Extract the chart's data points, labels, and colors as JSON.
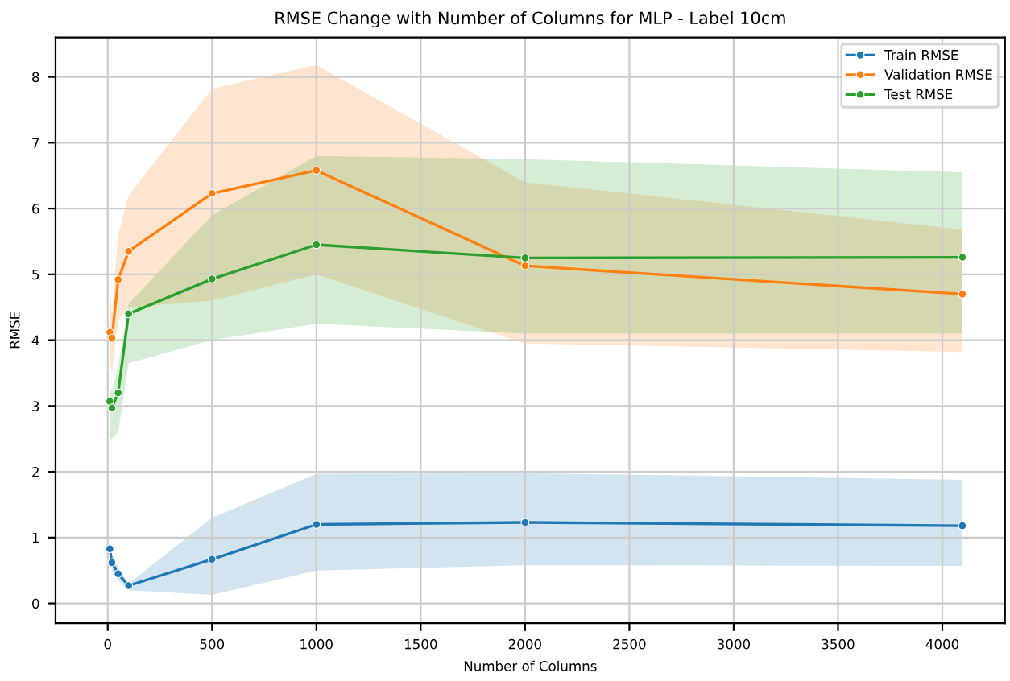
{
  "chart_data": {
    "type": "line",
    "title": "RMSE Change with Number of Columns for MLP - Label 10cm",
    "xlabel": "Number of Columns",
    "ylabel": "RMSE",
    "x": [
      10,
      20,
      50,
      100,
      500,
      1000,
      2000,
      4096
    ],
    "series": [
      {
        "name": "Train RMSE",
        "color": "#1f77b4",
        "values": [
          0.83,
          0.62,
          0.45,
          0.27,
          0.67,
          1.2,
          1.23,
          1.18
        ],
        "lower": [
          0.7,
          0.5,
          0.35,
          0.2,
          0.13,
          0.5,
          0.58,
          0.57
        ],
        "upper": [
          0.95,
          0.75,
          0.55,
          0.3,
          1.3,
          1.97,
          1.98,
          1.88
        ]
      },
      {
        "name": "Validation RMSE",
        "color": "#ff7f0e",
        "values": [
          4.12,
          4.03,
          4.92,
          5.35,
          6.23,
          6.58,
          5.13,
          4.7
        ],
        "lower": [
          3.7,
          3.5,
          4.3,
          4.5,
          4.6,
          5.0,
          3.95,
          3.82
        ],
        "upper": [
          4.8,
          4.4,
          5.6,
          6.2,
          7.82,
          8.18,
          6.4,
          5.68
        ]
      },
      {
        "name": "Test RMSE",
        "color": "#2ca02c",
        "values": [
          3.07,
          2.97,
          3.2,
          4.4,
          4.93,
          5.45,
          5.25,
          5.26
        ],
        "lower": [
          2.5,
          2.5,
          2.6,
          3.65,
          4.0,
          4.25,
          4.1,
          4.1
        ],
        "upper": [
          3.3,
          3.2,
          3.6,
          4.55,
          5.9,
          6.8,
          6.75,
          6.55
        ]
      }
    ],
    "xlim": [
      -250,
      4300
    ],
    "ylim": [
      -0.3,
      8.6
    ],
    "xticks": [
      0,
      500,
      1000,
      1500,
      2000,
      2500,
      3000,
      3500,
      4000
    ],
    "yticks": [
      0,
      1,
      2,
      3,
      4,
      5,
      6,
      7,
      8
    ],
    "grid": true,
    "legend": "top right",
    "marker": "circle",
    "line_style": "solid"
  }
}
